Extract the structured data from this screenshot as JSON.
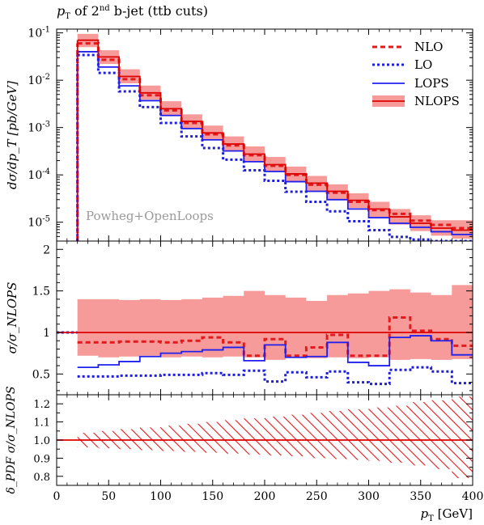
{
  "title": "p_T of 2nd b-jet (ttb cuts)",
  "title_parts": {
    "p": "p",
    "sub": "T",
    "mid": " of 2",
    "sup": "nd",
    "rest": " b-jet (ttb cuts)"
  },
  "watermark": "Powheg+OpenLoops",
  "xlabel": "p_T [GeV]",
  "xlabel_parts": {
    "p": "p",
    "sub": "T",
    "unit": " [GeV]"
  },
  "ylabel_top": "dσ/dp_T [pb/GeV]",
  "ylabel_mid": "σ/σ_NLOPS",
  "ylabel_bot": "δ_PDF σ/σ_NLOPS",
  "colors": {
    "nlo": "#e31a1c",
    "lo": "#1f1fdc",
    "lops": "#2020ee",
    "nlops_line": "#dd0000",
    "nlops_band": "#f79a9a",
    "hatch": "#e31a1c"
  },
  "chart_data": [
    {
      "type": "line",
      "panel": "main",
      "yscale": "log",
      "xlim": [
        0,
        400
      ],
      "ylim": [
        4e-06,
        0.12
      ],
      "x_ticks": [
        0,
        50,
        100,
        150,
        200,
        250,
        300,
        350,
        400
      ],
      "y_tick_labels": [
        "10^-1",
        "10^-2",
        "10^-3",
        "10^-4",
        "10^-5"
      ],
      "y_tick_values": [
        0.1,
        0.01,
        0.001,
        0.0001,
        1e-05
      ],
      "legend_position": "top-right",
      "bin_edges": [
        20,
        40,
        60,
        80,
        100,
        120,
        140,
        160,
        180,
        200,
        220,
        240,
        260,
        280,
        300,
        320,
        340,
        360,
        380,
        400
      ],
      "series": [
        {
          "name": "NLO",
          "style": "dashed",
          "values": [
            0.06,
            0.027,
            0.0105,
            0.0048,
            0.0023,
            0.00125,
            0.00072,
            0.00042,
            0.00026,
            0.000155,
            0.0001,
            6.2e-05,
            4.2e-05,
            2.7e-05,
            1.8e-05,
            1.5e-05,
            1.08e-05,
            8.8e-06,
            7.5e-06
          ]
        },
        {
          "name": "LO",
          "style": "dotted",
          "values": [
            0.034,
            0.0143,
            0.0058,
            0.0027,
            0.00125,
            0.00065,
            0.00037,
            0.00021,
            0.000125,
            7.5e-05,
            4.4e-05,
            2.7e-05,
            1.7e-05,
            1.05e-05,
            6.8e-06,
            4.9e-06,
            4.3e-06,
            4e-06,
            4e-06
          ]
        },
        {
          "name": "LOPS",
          "style": "solid",
          "values": [
            0.04,
            0.019,
            0.0076,
            0.0037,
            0.0018,
            0.00095,
            0.00055,
            0.00032,
            0.00019,
            0.000118,
            7.2e-05,
            4.5e-05,
            3e-05,
            1.9e-05,
            1.25e-05,
            9.5e-06,
            7.8e-06,
            6.3e-06,
            5.5e-06
          ]
        },
        {
          "name": "NLOPS",
          "style": "band",
          "values": [
            0.07,
            0.031,
            0.012,
            0.0054,
            0.0025,
            0.00135,
            0.00077,
            0.00045,
            0.000275,
            0.000165,
            0.000105,
            6.7e-05,
            4.5e-05,
            2.9e-05,
            1.9e-05,
            1.3e-05,
            9.5e-06,
            7.5e-06,
            6.8e-06
          ],
          "band_low": [
            0.05,
            0.022,
            0.0086,
            0.0039,
            0.0018,
            0.00097,
            0.00055,
            0.00032,
            0.00019,
            0.000115,
            7.3e-05,
            4.6e-05,
            3.1e-05,
            2e-05,
            1.3e-05,
            8.9e-06,
            6.5e-06,
            5.2e-06,
            4.5e-06
          ],
          "band_high": [
            0.095,
            0.043,
            0.017,
            0.0077,
            0.0036,
            0.0019,
            0.0011,
            0.00065,
            0.0004,
            0.00024,
            0.00015,
            9.5e-05,
            6.3e-05,
            4.1e-05,
            2.7e-05,
            1.9e-05,
            1.4e-05,
            1.1e-05,
            1.1e-05
          ]
        }
      ]
    },
    {
      "type": "line",
      "panel": "ratio",
      "xlim": [
        0,
        400
      ],
      "ylim": [
        0.25,
        2.1
      ],
      "y_ticks": [
        0.5,
        1,
        1.5,
        2
      ],
      "y_tick_labels": [
        "0.5",
        "1",
        "1.5",
        "2"
      ],
      "bin_edges": [
        20,
        40,
        60,
        80,
        100,
        120,
        140,
        160,
        180,
        200,
        220,
        240,
        260,
        280,
        300,
        320,
        340,
        360,
        380,
        400
      ],
      "series": [
        {
          "name": "NLO",
          "style": "dashed",
          "values": [
            0.88,
            0.88,
            0.89,
            0.89,
            0.88,
            0.9,
            0.94,
            0.88,
            0.72,
            0.92,
            0.72,
            0.82,
            0.97,
            0.72,
            0.72,
            1.18,
            1.02,
            0.92,
            0.84
          ]
        },
        {
          "name": "LO",
          "style": "dotted",
          "values": [
            0.47,
            0.47,
            0.48,
            0.48,
            0.49,
            0.49,
            0.51,
            0.49,
            0.54,
            0.41,
            0.52,
            0.46,
            0.53,
            0.4,
            0.38,
            0.55,
            0.58,
            0.53,
            0.39
          ]
        },
        {
          "name": "LOPS",
          "style": "solid",
          "values": [
            0.58,
            0.61,
            0.65,
            0.71,
            0.75,
            0.77,
            0.79,
            0.82,
            0.66,
            0.85,
            0.7,
            0.71,
            0.88,
            0.64,
            0.6,
            0.94,
            0.96,
            0.9,
            0.73
          ]
        },
        {
          "name": "NLOPS",
          "style": "band",
          "band_low": [
            0.72,
            0.7,
            0.71,
            0.72,
            0.7,
            0.71,
            0.7,
            0.71,
            0.7,
            0.67,
            0.7,
            0.69,
            0.7,
            0.69,
            0.7,
            0.67,
            0.68,
            0.67,
            0.68
          ],
          "band_high": [
            1.4,
            1.4,
            1.39,
            1.4,
            1.39,
            1.4,
            1.42,
            1.44,
            1.5,
            1.45,
            1.42,
            1.38,
            1.45,
            1.47,
            1.5,
            1.52,
            1.48,
            1.45,
            1.57
          ]
        }
      ]
    },
    {
      "type": "area",
      "panel": "pdf",
      "xlim": [
        0,
        400
      ],
      "ylim": [
        0.75,
        1.25
      ],
      "y_ticks": [
        0.8,
        0.9,
        1.0,
        1.1,
        1.2
      ],
      "y_tick_labels": [
        "0.8",
        "0.9",
        "1.0",
        "1.1",
        "1.2"
      ],
      "x_tick_labels": [
        "0",
        "50",
        "100",
        "150",
        "200",
        "250",
        "300",
        "350",
        "400"
      ],
      "bin_edges": [
        20,
        40,
        60,
        80,
        100,
        120,
        140,
        160,
        180,
        200,
        220,
        240,
        260,
        280,
        300,
        320,
        340,
        360,
        380,
        400
      ],
      "band_low": [
        0.96,
        0.955,
        0.95,
        0.945,
        0.94,
        0.935,
        0.93,
        0.925,
        0.92,
        0.915,
        0.91,
        0.9,
        0.895,
        0.89,
        0.885,
        0.875,
        0.86,
        0.84,
        0.79
      ],
      "band_high": [
        1.04,
        1.05,
        1.06,
        1.07,
        1.08,
        1.09,
        1.1,
        1.11,
        1.12,
        1.13,
        1.14,
        1.15,
        1.16,
        1.17,
        1.18,
        1.19,
        1.21,
        1.22,
        1.24
      ]
    }
  ]
}
